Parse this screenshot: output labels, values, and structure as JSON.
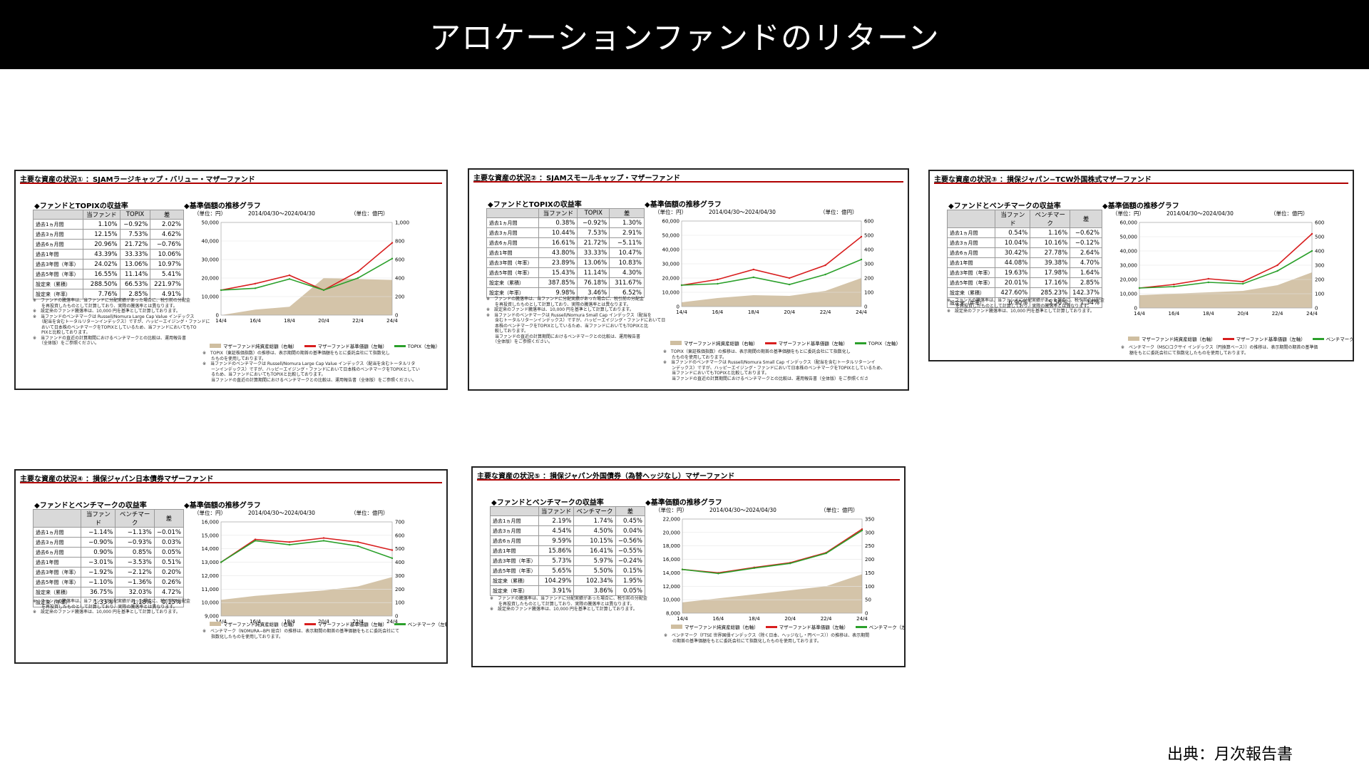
{
  "page": {
    "title": "アロケーションファンドのリターン",
    "source": "出典：月次報告書"
  },
  "colors": {
    "fund": "#d81e1e",
    "bench": "#2ba02b",
    "nav": "#cfbea0",
    "header_border": "#b00000"
  },
  "common": {
    "returns_title_topix": "◆ファンドとTOPIXの収益率",
    "returns_title_bench": "◆ファンドとベンチマークの収益率",
    "chart_title": "◆基準価額の推移グラフ",
    "unit_left": "（単位：円）",
    "unit_right": "（単位：億円）",
    "period": "2014/04/30〜2024/04/30",
    "col_diff": "差",
    "col_fund": "当ファンド",
    "note_row": "※"
  },
  "panels": [
    {
      "header": "主要な資産の状況① ：SJAMラージキャップ・バリュー・マザーファンド",
      "table": {
        "title_key": "topix",
        "columns": [
          "",
          "当ファンド",
          "TOPIX",
          "差"
        ],
        "rows": [
          [
            "過去1ヵ月間",
            "1.10%",
            "−0.92%",
            "2.02%"
          ],
          [
            "過去3ヵ月間",
            "12.15%",
            "7.53%",
            "4.62%"
          ],
          [
            "過去6ヵ月間",
            "20.96%",
            "21.72%",
            "−0.76%"
          ],
          [
            "過去1年間",
            "43.39%",
            "33.33%",
            "10.06%"
          ],
          [
            "過去3年間（年率）",
            "24.02%",
            "13.06%",
            "10.97%"
          ],
          [
            "過去5年間（年率）",
            "16.55%",
            "11.14%",
            "5.41%"
          ],
          [
            "設定来（累積）",
            "288.50%",
            "66.53%",
            "221.97%"
          ],
          [
            "設定来（年率）",
            "7.76%",
            "2.85%",
            "4.91%"
          ]
        ]
      },
      "notes_left": [
        "※　ファンドの騰落率は、当ファンドに分配実績があった場合に、税引前の分配金",
        "　　を再投資したものとして計算しており、実際の騰落率とは異なります。",
        "※　設定来のファンド騰落率は、10,000 円を基準として計算しております。",
        "※　当ファンドのベンチマークは Russell/Nomura Large Cap Value インデックス",
        "　　（配当を含むトータルリターンインデックス）ですが、ハッピーエイジング・ファンドに",
        "　　おいて日本株のベンチマークをTOPIXとしているため、当ファンドにおいてもTO",
        "　　PIXと比較しております。",
        "※　当ファンドの直近の計算期間におけるベンチマークとの比較は、運用報告書",
        "　　（全体版）をご参照ください。"
      ],
      "notes_right": [
        "※　TOPIX（東証株価指数）の推移は、表示期間の期首の基準価額をもとに委託会社にて指数化し",
        "　　たものを使用しております。",
        "※　当ファンドのベンチマークは Russell/Nomura Large Cap Value インデックス（配当を含むトータルリタ",
        "　　ーンインデックス）ですが、ハッピーエイジング・ファンドにおいて日本株のベンチマークをTOPIXとしてい",
        "　　るため、当ファンドにおいてもTOPIXと比較しております。",
        "　　当ファンドの直近の計算期間におけるベンチマークとの比較は、運用報告書（全体版）をご参照ください。"
      ],
      "legend": [
        "マザーファンド純資産総額（右軸）",
        "マザーファンド基準価額（左軸）",
        "TOPIX（左軸）"
      ]
    },
    {
      "header": "主要な資産の状況② ：SJAMスモールキャップ・マザーファンド",
      "table": {
        "title_key": "topix",
        "columns": [
          "",
          "当ファンド",
          "TOPIX",
          "差"
        ],
        "rows": [
          [
            "過去1ヵ月間",
            "0.38%",
            "−0.92%",
            "1.30%"
          ],
          [
            "過去3ヵ月間",
            "10.44%",
            "7.53%",
            "2.91%"
          ],
          [
            "過去6ヵ月間",
            "16.61%",
            "21.72%",
            "−5.11%"
          ],
          [
            "過去1年間",
            "43.80%",
            "33.33%",
            "10.47%"
          ],
          [
            "過去3年間（年率）",
            "23.89%",
            "13.06%",
            "10.83%"
          ],
          [
            "過去5年間（年率）",
            "15.43%",
            "11.14%",
            "4.30%"
          ],
          [
            "設定来（累積）",
            "387.85%",
            "76.18%",
            "311.67%"
          ],
          [
            "設定来（年率）",
            "9.98%",
            "3.46%",
            "6.52%"
          ]
        ]
      },
      "notes_left": [
        "※　ファンドの騰落率は、当ファンドに分配実績があった場合に、税引前の分配金",
        "　　を再投資したものとして計算しており、実際の騰落率とは異なります。",
        "※　設定来のファンド騰落率は、10,000 円を基準として計算しております。",
        "※　当ファンドのベンチマークは Russell/Nomura Small Cap インデックス（配当を",
        "　　含むトータルリターンインデックス）ですが、ハッピーエイジング・ファンドにおいて日",
        "　　本株のベンチマークをTOPIXとしているため、当ファンドにおいてもTOPIXと比",
        "　　較しております。",
        "　　当ファンドの直近の計算期間におけるベンチマークとの比較は、運用報告書",
        "　　（全体版）をご参照ください。"
      ],
      "notes_right": [
        "※　TOPIX（東証株価指数）の推移は、表示期間の期首の基準価額をもとに委託会社にて指数化し",
        "　　たものを使用しております。",
        "※　当ファンドのベンチマークは Russell/Nomura Small Cap インデックス（配当を含むトータルリターンイ",
        "　　ンデックス）ですが、ハッピーエイジング・ファンドにおいて日本株のベンチマークをTOPIXとしているため、",
        "　　当ファンドにおいてもTOPIXと比較しております。",
        "　　当ファンドの直近の計算期間におけるベンチマークとの比較は、運用報告書（全体版）をご参照くださ"
      ],
      "legend": [
        "マザーファンド純資産総額（右軸）",
        "マザーファンド基準価額（左軸）",
        "TOPIX（左軸）"
      ]
    },
    {
      "header": "主要な資産の状況③ ：損保ジャパン−TCW外国株式マザーファンド",
      "table": {
        "title_key": "bench",
        "columns": [
          "",
          "当ファンド",
          "ベンチマーク",
          "差"
        ],
        "rows": [
          [
            "過去1ヵ月間",
            "0.54%",
            "1.16%",
            "−0.62%"
          ],
          [
            "過去3ヵ月間",
            "10.04%",
            "10.16%",
            "−0.12%"
          ],
          [
            "過去6ヵ月間",
            "30.42%",
            "27.78%",
            "2.64%"
          ],
          [
            "過去1年間",
            "44.08%",
            "39.38%",
            "4.70%"
          ],
          [
            "過去3年間（年率）",
            "19.63%",
            "17.98%",
            "1.64%"
          ],
          [
            "過去5年間（年率）",
            "20.01%",
            "17.16%",
            "2.85%"
          ],
          [
            "設定来（累積）",
            "427.60%",
            "285.23%",
            "142.37%"
          ],
          [
            "設定来（年率）",
            "6.90%",
            "5.56%",
            "1.34%"
          ]
        ]
      },
      "notes_left": [
        "※　ファンドの騰落率は、当ファンドに分配実績があった場合に、税引前の分配金",
        "　　を再投資したものとして計算しており、実際の騰落率とは異なります。",
        "※　設定来のファンド騰落率は、10,000 円を基準として計算しております。"
      ],
      "notes_right": [
        "※　ベンチマーク（MSCIコクサイ インデックス（円換算ベース））の推移は、表示期間の期首の基準価",
        "　　額をもとに委託会社にて指数化したものを使用しております。"
      ],
      "legend": [
        "マザーファンド純資産総額（右軸）",
        "マザーファンド基準価額（左軸）",
        "ベンチマーク（左軸）"
      ]
    },
    {
      "header": "主要な資産の状況④ ：損保ジャパン日本債券マザーファンド",
      "table": {
        "title_key": "bench",
        "columns": [
          "",
          "当ファンド",
          "ベンチマーク",
          "差"
        ],
        "rows": [
          [
            "過去1ヵ月間",
            "−1.14%",
            "−1.13%",
            "−0.01%"
          ],
          [
            "過去3ヵ月間",
            "−0.90%",
            "−0.93%",
            "0.03%"
          ],
          [
            "過去6ヵ月間",
            "0.90%",
            "0.85%",
            "0.05%"
          ],
          [
            "過去1年間",
            "−3.01%",
            "−3.53%",
            "0.51%"
          ],
          [
            "過去3年間（年率）",
            "−1.92%",
            "−2.12%",
            "0.20%"
          ],
          [
            "過去5年間（年率）",
            "−1.10%",
            "−1.36%",
            "0.26%"
          ],
          [
            "設定来（累積）",
            "36.75%",
            "32.03%",
            "4.72%"
          ],
          [
            "設定来（年率）",
            "1.33%",
            "1.18%",
            "0.15%"
          ]
        ]
      },
      "notes_left": [
        "※　ファンドの騰落率は、当ファンドに分配実績があった場合に、税引前の分配金",
        "　　を再投資したものとして計算しており、実際の騰落率とは異なります。",
        "※　設定来のファンド騰落率は、10,000 円を基準として計算しております。"
      ],
      "notes_right": [
        "※　ベンチマーク（NOMURA−BPI 総合）の推移は、表示期間の期首の基準価額をもとに委託会社にて",
        "　　指数化したものを使用しております。"
      ],
      "legend": [
        "マザーファンド純資産総額（右軸）",
        "マザーファンド基準価額（左軸）",
        "ベンチマーク（左軸）"
      ]
    },
    {
      "header": "主要な資産の状況⑤ ：損保ジャパン外国債券（為替ヘッジなし）マザーファンド",
      "table": {
        "title_key": "bench",
        "columns": [
          "",
          "当ファンド",
          "ベンチマーク",
          "差"
        ],
        "rows": [
          [
            "過去1ヵ月間",
            "2.19%",
            "1.74%",
            "0.45%"
          ],
          [
            "過去3ヵ月間",
            "4.54%",
            "4.50%",
            "0.04%"
          ],
          [
            "過去6ヵ月間",
            "9.59%",
            "10.15%",
            "−0.56%"
          ],
          [
            "過去1年間",
            "15.86%",
            "16.41%",
            "−0.55%"
          ],
          [
            "過去3年間（年率）",
            "5.73%",
            "5.97%",
            "−0.24%"
          ],
          [
            "過去5年間（年率）",
            "5.65%",
            "5.50%",
            "0.15%"
          ],
          [
            "設定来（累積）",
            "104.29%",
            "102.34%",
            "1.95%"
          ],
          [
            "設定来（年率）",
            "3.91%",
            "3.86%",
            "0.05%"
          ]
        ]
      },
      "notes_left": [
        "※　ファンドの騰落率は、当ファンドに分配実績があった場合に、税引前の分配金",
        "　　を再投資したものとして計算しており、実際の騰落率とは異なります。",
        "※　設定来のファンド騰落率は、10,000 円を基準として計算しております。"
      ],
      "notes_right": [
        "※　ベンチマーク（FTSE 世界国債インデックス（除く日本、ヘッジなし・円ベース））の推移は、表示期間",
        "　　の期首の基準価額をもとに委託会社にて指数化したものを使用しております。"
      ],
      "legend": [
        "マザーファンド純資産総額（右軸）",
        "マザーファンド基準価額（左軸）",
        "ベンチマーク（左軸）"
      ]
    }
  ],
  "chart_data": [
    {
      "type": "line",
      "title": "◆基準価額の推移グラフ",
      "x": [
        "14/4",
        "16/4",
        "18/4",
        "20/4",
        "22/4",
        "24/4"
      ],
      "y_left_ticks": [
        "50,000",
        "40,000",
        "30,000",
        "20,000",
        "10,000",
        "0"
      ],
      "y_right_ticks": [
        "1,000",
        "800",
        "600",
        "400",
        "200",
        "0"
      ],
      "ylim_left": [
        0,
        50000
      ],
      "ylim_right": [
        0,
        1000
      ],
      "series": [
        {
          "name": "マザーファンド基準価額（左軸）",
          "axis": "left",
          "values": [
            13500,
            17000,
            21500,
            13500,
            23500,
            39000
          ]
        },
        {
          "name": "TOPIX（左軸）",
          "axis": "left",
          "values": [
            13500,
            14500,
            19500,
            13500,
            20000,
            30500
          ]
        },
        {
          "name": "マザーファンド純資産総額（右軸）",
          "axis": "right",
          "values": [
            0,
            60,
            90,
            400,
            390,
            380
          ]
        }
      ]
    },
    {
      "type": "line",
      "title": "◆基準価額の推移グラフ",
      "x": [
        "14/4",
        "16/4",
        "18/4",
        "20/4",
        "22/4",
        "24/4"
      ],
      "y_left_ticks": [
        "60,000",
        "50,000",
        "40,000",
        "30,000",
        "20,000",
        "10,000",
        "0"
      ],
      "y_right_ticks": [
        "600",
        "500",
        "400",
        "300",
        "200",
        "100",
        "0"
      ],
      "ylim_left": [
        0,
        60000
      ],
      "ylim_right": [
        0,
        600
      ],
      "series": [
        {
          "name": "マザーファンド基準価額（左軸）",
          "axis": "left",
          "values": [
            15000,
            19000,
            26000,
            20000,
            29000,
            49000
          ]
        },
        {
          "name": "TOPIX（左軸）",
          "axis": "left",
          "values": [
            15000,
            16000,
            20500,
            15500,
            22500,
            33000
          ]
        },
        {
          "name": "マザーファンド純資産総額（右軸）",
          "axis": "right",
          "values": [
            30,
            60,
            80,
            75,
            110,
            200
          ]
        }
      ]
    },
    {
      "type": "line",
      "title": "◆基準価額の推移グラフ",
      "x": [
        "14/4",
        "16/4",
        "18/4",
        "20/4",
        "22/4",
        "24/4"
      ],
      "y_left_ticks": [
        "60,000",
        "50,000",
        "40,000",
        "30,000",
        "20,000",
        "10,000",
        "0"
      ],
      "y_right_ticks": [
        "600",
        "500",
        "400",
        "300",
        "200",
        "100",
        "0"
      ],
      "ylim_left": [
        0,
        60000
      ],
      "ylim_right": [
        0,
        600
      ],
      "series": [
        {
          "name": "マザーファンド基準価額（左軸）",
          "axis": "left",
          "values": [
            14000,
            16500,
            20500,
            18500,
            30000,
            52000
          ]
        },
        {
          "name": "ベンチマーク（左軸）",
          "axis": "left",
          "values": [
            14000,
            15000,
            18000,
            17000,
            26000,
            40000
          ]
        },
        {
          "name": "マザーファンド純資産総額（右軸）",
          "axis": "right",
          "values": [
            90,
            100,
            110,
            120,
            160,
            250
          ]
        }
      ]
    },
    {
      "type": "line",
      "title": "◆基準価額の推移グラフ",
      "x": [
        "14/4",
        "16/4",
        "18/4",
        "20/4",
        "22/4",
        "24/4"
      ],
      "y_left_ticks": [
        "16,000",
        "15,000",
        "14,000",
        "13,000",
        "12,000",
        "11,000",
        "10,000",
        "9,000"
      ],
      "y_right_ticks": [
        "700",
        "600",
        "500",
        "400",
        "300",
        "200",
        "100",
        "0"
      ],
      "ylim_left": [
        9000,
        16000
      ],
      "ylim_right": [
        0,
        700
      ],
      "series": [
        {
          "name": "マザーファンド基準価額（左軸）",
          "axis": "left",
          "values": [
            13000,
            14700,
            14500,
            14800,
            14500,
            13900
          ]
        },
        {
          "name": "ベンチマーク（左軸）",
          "axis": "left",
          "values": [
            13000,
            14600,
            14300,
            14600,
            14200,
            13300
          ]
        },
        {
          "name": "マザーファンド純資産総額（右軸）",
          "axis": "right",
          "values": [
            120,
            150,
            170,
            190,
            220,
            290
          ]
        }
      ]
    },
    {
      "type": "line",
      "title": "◆基準価額の推移グラフ",
      "x": [
        "14/4",
        "16/4",
        "18/4",
        "20/4",
        "22/4",
        "24/4"
      ],
      "y_left_ticks": [
        "22,000",
        "20,000",
        "18,000",
        "16,000",
        "14,000",
        "12,000",
        "10,000",
        "8,000"
      ],
      "y_right_ticks": [
        "350",
        "300",
        "250",
        "200",
        "150",
        "100",
        "50",
        "0"
      ],
      "ylim_left": [
        8000,
        22000
      ],
      "ylim_right": [
        0,
        350
      ],
      "series": [
        {
          "name": "マザーファンド基準価額（左軸）",
          "axis": "left",
          "values": [
            14500,
            14000,
            14800,
            15500,
            17000,
            20500
          ]
        },
        {
          "name": "ベンチマーク（左軸）",
          "axis": "left",
          "values": [
            14500,
            13900,
            14700,
            15400,
            16900,
            20300
          ]
        },
        {
          "name": "マザーファンド純資産総額（右軸）",
          "axis": "right",
          "values": [
            40,
            55,
            70,
            85,
            100,
            145
          ]
        }
      ]
    }
  ]
}
